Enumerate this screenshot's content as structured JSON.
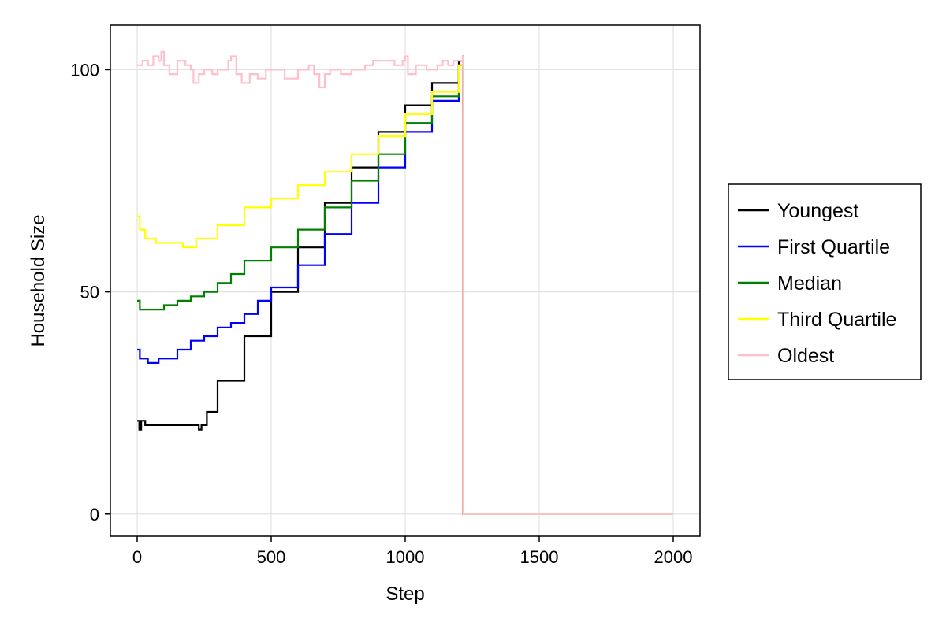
{
  "chart_data": {
    "type": "line",
    "title": "",
    "xlabel": "Step",
    "ylabel": "Household Size",
    "xlim": [
      -100,
      2100
    ],
    "ylim": [
      -5,
      110
    ],
    "xticks": [
      0,
      500,
      1000,
      1500,
      2000
    ],
    "yticks": [
      0,
      50,
      100
    ],
    "grid": true,
    "legend_position": "right",
    "series": [
      {
        "name": "Youngest",
        "color": "#000000",
        "points": [
          [
            0,
            21
          ],
          [
            8,
            19
          ],
          [
            15,
            21
          ],
          [
            30,
            20
          ],
          [
            50,
            20
          ],
          [
            100,
            20
          ],
          [
            150,
            20
          ],
          [
            200,
            20
          ],
          [
            220,
            20
          ],
          [
            230,
            19
          ],
          [
            240,
            20
          ],
          [
            260,
            23
          ],
          [
            300,
            30
          ],
          [
            400,
            40
          ],
          [
            500,
            50
          ],
          [
            600,
            60
          ],
          [
            700,
            70
          ],
          [
            800,
            78
          ],
          [
            900,
            86
          ],
          [
            1000,
            92
          ],
          [
            1100,
            97
          ],
          [
            1200,
            102
          ],
          [
            1215,
            103
          ],
          [
            1216,
            0
          ],
          [
            2000,
            0
          ]
        ]
      },
      {
        "name": "First Quartile",
        "color": "#0000ff",
        "points": [
          [
            0,
            37
          ],
          [
            10,
            35
          ],
          [
            40,
            34
          ],
          [
            80,
            35
          ],
          [
            150,
            37
          ],
          [
            200,
            39
          ],
          [
            250,
            40
          ],
          [
            300,
            42
          ],
          [
            350,
            43
          ],
          [
            400,
            45
          ],
          [
            450,
            48
          ],
          [
            500,
            51
          ],
          [
            600,
            56
          ],
          [
            700,
            63
          ],
          [
            800,
            70
          ],
          [
            900,
            78
          ],
          [
            1000,
            86
          ],
          [
            1100,
            93
          ],
          [
            1200,
            101
          ],
          [
            1215,
            103
          ],
          [
            1216,
            0
          ],
          [
            2000,
            0
          ]
        ]
      },
      {
        "name": "Median",
        "color": "#008000",
        "points": [
          [
            0,
            48
          ],
          [
            10,
            46
          ],
          [
            50,
            46
          ],
          [
            100,
            47
          ],
          [
            150,
            48
          ],
          [
            200,
            49
          ],
          [
            250,
            50
          ],
          [
            300,
            52
          ],
          [
            350,
            54
          ],
          [
            400,
            57
          ],
          [
            500,
            60
          ],
          [
            600,
            64
          ],
          [
            700,
            69
          ],
          [
            800,
            75
          ],
          [
            900,
            81
          ],
          [
            1000,
            88
          ],
          [
            1100,
            94
          ],
          [
            1200,
            101
          ],
          [
            1215,
            103
          ],
          [
            1216,
            0
          ],
          [
            2000,
            0
          ]
        ]
      },
      {
        "name": "Third Quartile",
        "color": "#ffff00",
        "points": [
          [
            0,
            67
          ],
          [
            10,
            64
          ],
          [
            30,
            62
          ],
          [
            70,
            61
          ],
          [
            120,
            61
          ],
          [
            170,
            60
          ],
          [
            220,
            62
          ],
          [
            300,
            65
          ],
          [
            400,
            69
          ],
          [
            500,
            71
          ],
          [
            600,
            74
          ],
          [
            700,
            77
          ],
          [
            800,
            81
          ],
          [
            900,
            85
          ],
          [
            1000,
            90
          ],
          [
            1100,
            95
          ],
          [
            1200,
            101
          ],
          [
            1215,
            103
          ],
          [
            1216,
            0
          ],
          [
            2000,
            0
          ]
        ]
      },
      {
        "name": "Oldest",
        "color": "#ffc0cb",
        "points": [
          [
            0,
            101
          ],
          [
            20,
            102
          ],
          [
            40,
            101
          ],
          [
            60,
            103
          ],
          [
            80,
            102
          ],
          [
            90,
            104
          ],
          [
            100,
            101
          ],
          [
            120,
            99
          ],
          [
            150,
            102
          ],
          [
            180,
            101
          ],
          [
            200,
            100
          ],
          [
            210,
            97
          ],
          [
            230,
            99
          ],
          [
            250,
            100
          ],
          [
            280,
            99
          ],
          [
            300,
            100
          ],
          [
            340,
            102
          ],
          [
            350,
            103
          ],
          [
            370,
            99
          ],
          [
            390,
            97
          ],
          [
            420,
            99
          ],
          [
            450,
            98
          ],
          [
            480,
            100
          ],
          [
            520,
            100
          ],
          [
            550,
            98
          ],
          [
            600,
            100
          ],
          [
            640,
            101
          ],
          [
            660,
            99
          ],
          [
            680,
            96
          ],
          [
            700,
            99
          ],
          [
            720,
            100
          ],
          [
            760,
            99
          ],
          [
            800,
            100
          ],
          [
            850,
            101
          ],
          [
            880,
            102
          ],
          [
            920,
            102
          ],
          [
            960,
            101
          ],
          [
            990,
            102
          ],
          [
            1000,
            103
          ],
          [
            1010,
            99
          ],
          [
            1040,
            101
          ],
          [
            1080,
            100
          ],
          [
            1120,
            101
          ],
          [
            1140,
            102
          ],
          [
            1160,
            101
          ],
          [
            1180,
            102
          ],
          [
            1200,
            102
          ],
          [
            1215,
            103
          ],
          [
            1216,
            0
          ],
          [
            2000,
            0
          ]
        ]
      }
    ]
  }
}
